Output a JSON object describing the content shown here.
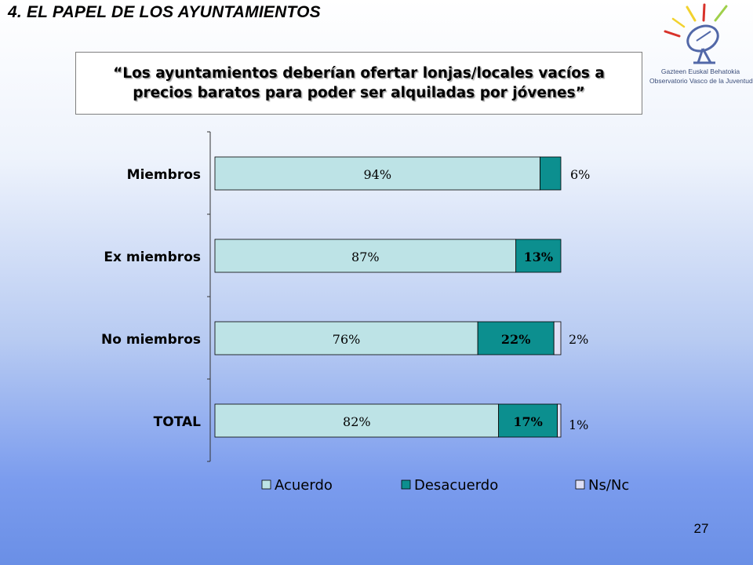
{
  "header": {
    "section_title": "4. EL PAPEL DE LOS AYUNTAMIENTOS",
    "quote": "“Los ayuntamientos deberían ofertar lonjas/locales vacíos a precios baratos para poder ser alquiladas por jóvenes”"
  },
  "logo": {
    "icon": "satellite-dish-icon",
    "line1": "Gazteen Euskal Behatokia",
    "line2": "Observatorio Vasco de la Juventud",
    "colors": {
      "rays_yellow": "#f2d22e",
      "rays_red": "#d8322a",
      "rays_green": "#9fd04a",
      "dish": "#5268a8"
    }
  },
  "chart_data": {
    "type": "bar",
    "orientation": "horizontal",
    "stacked": true,
    "categories": [
      "Miembros",
      "Ex miembros",
      "No miembros",
      "TOTAL"
    ],
    "series": [
      {
        "name": "Acuerdo",
        "values": [
          94,
          87,
          76,
          82
        ],
        "labels": [
          "94%",
          "87%",
          "76%",
          "82%"
        ],
        "color": "#bde3e6"
      },
      {
        "name": "Desacuerdo",
        "values": [
          6,
          13,
          22,
          17
        ],
        "labels": [
          "6%",
          "13%",
          "22%",
          "17%"
        ],
        "color": "#0c8f8f"
      },
      {
        "name": "Ns/Nc",
        "values": [
          0,
          0,
          2,
          1
        ],
        "labels": [
          "",
          "",
          "2%",
          "1%"
        ],
        "color": "#dedff5"
      }
    ],
    "xlim": [
      0,
      100
    ],
    "legend_position": "bottom",
    "grid": false
  },
  "footer": {
    "page_number": "27"
  }
}
